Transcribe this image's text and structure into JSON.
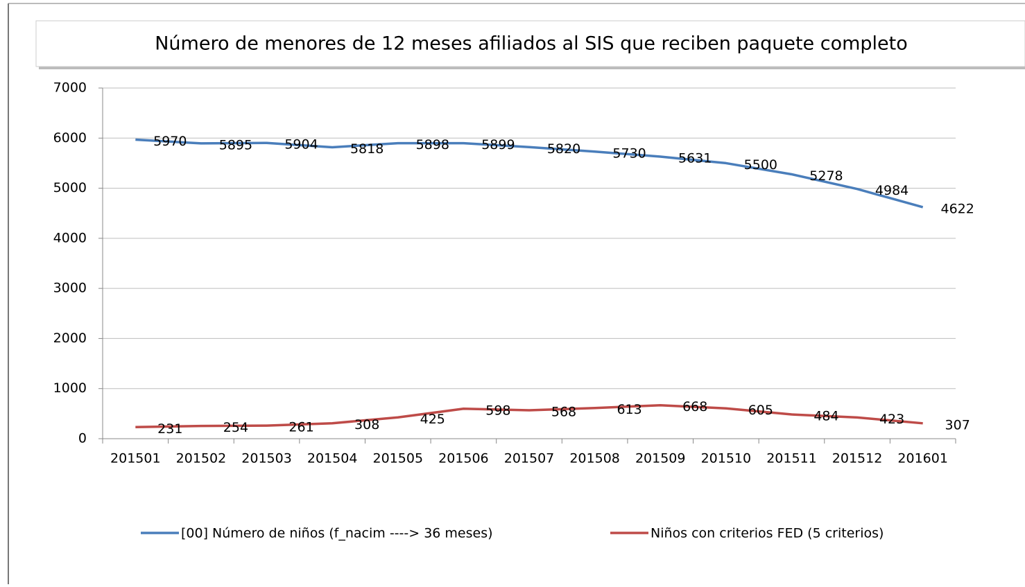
{
  "chart_data": {
    "type": "line",
    "title": "Número de menores de 12 meses afiliados al SIS que reciben paquete completo",
    "categories": [
      "201501",
      "201502",
      "201503",
      "201504",
      "201505",
      "201506",
      "201507",
      "201508",
      "201509",
      "201510",
      "201511",
      "201512",
      "201601"
    ],
    "series": [
      {
        "name": "[00] Número de niños (f_nacim ----> 36 meses)",
        "color": "#4a7ebb",
        "values": [
          5970,
          5895,
          5904,
          5818,
          5898,
          5899,
          5820,
          5730,
          5631,
          5500,
          5278,
          4984,
          4622
        ]
      },
      {
        "name": "Niños con criterios FED (5 criterios)",
        "color": "#be4b48",
        "values": [
          231,
          254,
          261,
          308,
          425,
          598,
          568,
          613,
          668,
          605,
          484,
          423,
          307
        ]
      }
    ],
    "ylim": [
      0,
      7000
    ],
    "yticks": [
      0,
      1000,
      2000,
      3000,
      4000,
      5000,
      6000,
      7000
    ],
    "grid": true,
    "legend": "bottom"
  }
}
